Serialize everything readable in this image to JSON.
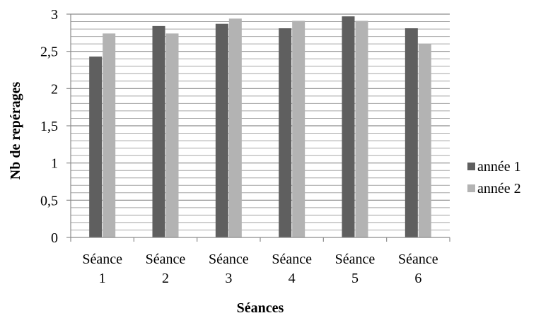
{
  "chart_data": {
    "type": "bar",
    "categories": [
      [
        "Séance",
        "1"
      ],
      [
        "Séance",
        "2"
      ],
      [
        "Séance",
        "3"
      ],
      [
        "Séance",
        "4"
      ],
      [
        "Séance",
        "5"
      ],
      [
        "Séance",
        "6"
      ]
    ],
    "series": [
      {
        "name": "année 1",
        "values": [
          2.43,
          2.84,
          2.87,
          2.81,
          2.97,
          2.81
        ]
      },
      {
        "name": "année 2",
        "values": [
          2.74,
          2.74,
          2.94,
          2.91,
          2.91,
          2.6
        ]
      }
    ],
    "colors": [
      "#5f5f5f",
      "#b3b3b3"
    ],
    "xlabel": "Séances",
    "ylabel": "Nb de repérages",
    "ylim": [
      0,
      3
    ],
    "y_ticks": [
      "0",
      "0,5",
      "1",
      "1,5",
      "2",
      "2,5",
      "3"
    ],
    "minor_gridlines": true,
    "legend_position": "right"
  }
}
